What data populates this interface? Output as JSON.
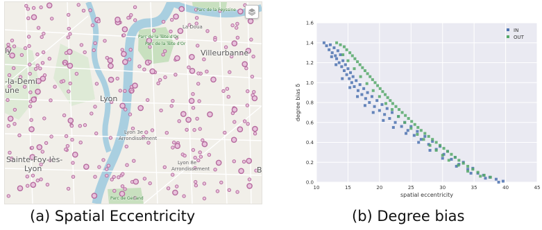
{
  "map": {
    "labels": {
      "lyon": "Lyon",
      "villeurbanne": "Villeurbanne",
      "sainte_foy_1": "Sainte-Foy-lès-",
      "sainte_foy_2": "Lyon",
      "la_demi": "-la-Demi",
      "une": "une",
      "ly": "ly",
      "b": "B",
      "la_doua": "La Doua",
      "lyon_3e_1": "Lyon 3e",
      "lyon_3e_2": "Arrondissement",
      "lyon_8e_1": "Lyon 8e",
      "lyon_8e_2": "Arrondissement",
      "parc_tete_dor_1": "Parc de la Tête d'Or",
      "parc_tete_dor_2": "Parc de la Tête d'Or",
      "parc_feyssine": "Parc de la Feyssine",
      "parc_gerland": "Parc de Gerland"
    },
    "layers_icon": "layers-icon",
    "colors": {
      "station": "#b56a9d",
      "river": "#a9cfe0",
      "park": "#c8e0bf"
    }
  },
  "chart_data": {
    "type": "scatter",
    "xlabel": "spatial eccentricity",
    "ylabel": "degree bias δ",
    "xlim": [
      10,
      45
    ],
    "ylim": [
      0.0,
      1.6
    ],
    "xticks": [
      10,
      15,
      20,
      25,
      30,
      35,
      40,
      45
    ],
    "yticks": [
      0.0,
      0.2,
      0.4,
      0.6,
      0.8,
      1.0,
      1.2,
      1.4,
      1.6
    ],
    "grid": true,
    "legend_position": "top-right",
    "series": [
      {
        "name": "IN",
        "color": "#4c72b0",
        "points": [
          [
            11.2,
            1.4
          ],
          [
            11.6,
            1.37
          ],
          [
            12.0,
            1.33
          ],
          [
            12.2,
            1.38
          ],
          [
            12.5,
            1.3
          ],
          [
            12.8,
            1.35
          ],
          [
            13.0,
            1.27
          ],
          [
            13.2,
            1.24
          ],
          [
            13.4,
            1.32
          ],
          [
            13.6,
            1.2
          ],
          [
            13.8,
            1.28
          ],
          [
            14.0,
            1.16
          ],
          [
            14.2,
            1.22
          ],
          [
            14.4,
            1.12
          ],
          [
            14.6,
            1.18
          ],
          [
            14.8,
            1.08
          ],
          [
            15.0,
            1.14
          ],
          [
            15.2,
            1.04
          ],
          [
            15.4,
            1.1
          ],
          [
            15.6,
            1.0
          ],
          [
            15.8,
            1.06
          ],
          [
            16.0,
            0.96
          ],
          [
            16.3,
            1.02
          ],
          [
            16.6,
            0.92
          ],
          [
            16.9,
            0.98
          ],
          [
            17.2,
            0.88
          ],
          [
            17.5,
            0.94
          ],
          [
            17.8,
            0.84
          ],
          [
            18.1,
            0.9
          ],
          [
            18.4,
            0.8
          ],
          [
            18.8,
            0.86
          ],
          [
            19.2,
            0.76
          ],
          [
            19.6,
            0.82
          ],
          [
            20.0,
            0.72
          ],
          [
            20.4,
            0.78
          ],
          [
            20.8,
            0.68
          ],
          [
            21.2,
            0.74
          ],
          [
            21.6,
            0.64
          ],
          [
            22.0,
            0.7
          ],
          [
            22.5,
            0.6
          ],
          [
            23.0,
            0.66
          ],
          [
            23.5,
            0.56
          ],
          [
            24.0,
            0.6
          ],
          [
            24.5,
            0.52
          ],
          [
            25.0,
            0.56
          ],
          [
            25.5,
            0.47
          ],
          [
            26.0,
            0.51
          ],
          [
            26.6,
            0.43
          ],
          [
            27.2,
            0.46
          ],
          [
            27.8,
            0.38
          ],
          [
            28.4,
            0.41
          ],
          [
            29.0,
            0.33
          ],
          [
            29.6,
            0.36
          ],
          [
            30.2,
            0.28
          ],
          [
            30.8,
            0.31
          ],
          [
            31.4,
            0.23
          ],
          [
            32.0,
            0.25
          ],
          [
            32.6,
            0.18
          ],
          [
            33.3,
            0.2
          ],
          [
            34.0,
            0.13
          ],
          [
            34.8,
            0.14
          ],
          [
            35.6,
            0.09
          ],
          [
            36.5,
            0.07
          ],
          [
            37.5,
            0.05
          ],
          [
            38.5,
            0.03
          ],
          [
            39.6,
            0.01
          ],
          [
            12.4,
            1.26
          ],
          [
            13.1,
            1.18
          ],
          [
            14.1,
            1.04
          ],
          [
            15.3,
            0.95
          ],
          [
            16.5,
            0.86
          ],
          [
            17.7,
            0.77
          ],
          [
            19.0,
            0.7
          ],
          [
            20.6,
            0.62
          ],
          [
            22.2,
            0.55
          ],
          [
            24.2,
            0.49
          ],
          [
            26.2,
            0.4
          ],
          [
            28.0,
            0.32
          ],
          [
            30.0,
            0.24
          ],
          [
            32.2,
            0.16
          ],
          [
            34.5,
            0.09
          ],
          [
            36.8,
            0.04
          ],
          [
            38.9,
            0.0
          ]
        ]
      },
      {
        "name": "OUT",
        "color": "#55a868",
        "points": [
          [
            13.2,
            1.4
          ],
          [
            13.8,
            1.38
          ],
          [
            14.4,
            1.36
          ],
          [
            14.8,
            1.33
          ],
          [
            15.3,
            1.3
          ],
          [
            15.7,
            1.27
          ],
          [
            16.1,
            1.24
          ],
          [
            16.5,
            1.21
          ],
          [
            16.9,
            1.18
          ],
          [
            17.3,
            1.15
          ],
          [
            17.7,
            1.12
          ],
          [
            18.1,
            1.09
          ],
          [
            18.5,
            1.06
          ],
          [
            18.9,
            1.03
          ],
          [
            19.3,
            1.0
          ],
          [
            19.7,
            0.97
          ],
          [
            20.1,
            0.94
          ],
          [
            20.5,
            0.91
          ],
          [
            20.9,
            0.88
          ],
          [
            21.3,
            0.85
          ],
          [
            21.7,
            0.82
          ],
          [
            22.1,
            0.79
          ],
          [
            22.6,
            0.76
          ],
          [
            23.1,
            0.73
          ],
          [
            23.6,
            0.7
          ],
          [
            24.1,
            0.67
          ],
          [
            24.6,
            0.64
          ],
          [
            25.1,
            0.61
          ],
          [
            25.6,
            0.58
          ],
          [
            26.1,
            0.55
          ],
          [
            26.6,
            0.52
          ],
          [
            27.2,
            0.49
          ],
          [
            27.8,
            0.46
          ],
          [
            28.4,
            0.43
          ],
          [
            29.0,
            0.4
          ],
          [
            29.6,
            0.37
          ],
          [
            30.2,
            0.34
          ],
          [
            30.8,
            0.31
          ],
          [
            31.4,
            0.28
          ],
          [
            32.0,
            0.25
          ],
          [
            32.6,
            0.22
          ],
          [
            33.3,
            0.19
          ],
          [
            34.0,
            0.16
          ],
          [
            34.8,
            0.13
          ],
          [
            35.6,
            0.1
          ],
          [
            36.6,
            0.07
          ],
          [
            37.6,
            0.05
          ],
          [
            14.2,
            1.28
          ],
          [
            15.0,
            1.22
          ],
          [
            16.0,
            1.14
          ],
          [
            17.0,
            1.06
          ],
          [
            18.0,
            0.99
          ],
          [
            19.0,
            0.92
          ],
          [
            20.0,
            0.86
          ],
          [
            21.0,
            0.79
          ],
          [
            22.0,
            0.73
          ],
          [
            23.0,
            0.66
          ],
          [
            24.0,
            0.6
          ],
          [
            25.0,
            0.54
          ],
          [
            26.0,
            0.48
          ],
          [
            27.0,
            0.43
          ],
          [
            28.0,
            0.37
          ],
          [
            29.0,
            0.32
          ],
          [
            30.0,
            0.27
          ],
          [
            31.0,
            0.22
          ],
          [
            32.5,
            0.17
          ],
          [
            34.0,
            0.11
          ],
          [
            36.0,
            0.06
          ]
        ]
      }
    ]
  },
  "captions": {
    "a": "(a) Spatial Eccentricity",
    "b": "(b) Degree bias"
  }
}
